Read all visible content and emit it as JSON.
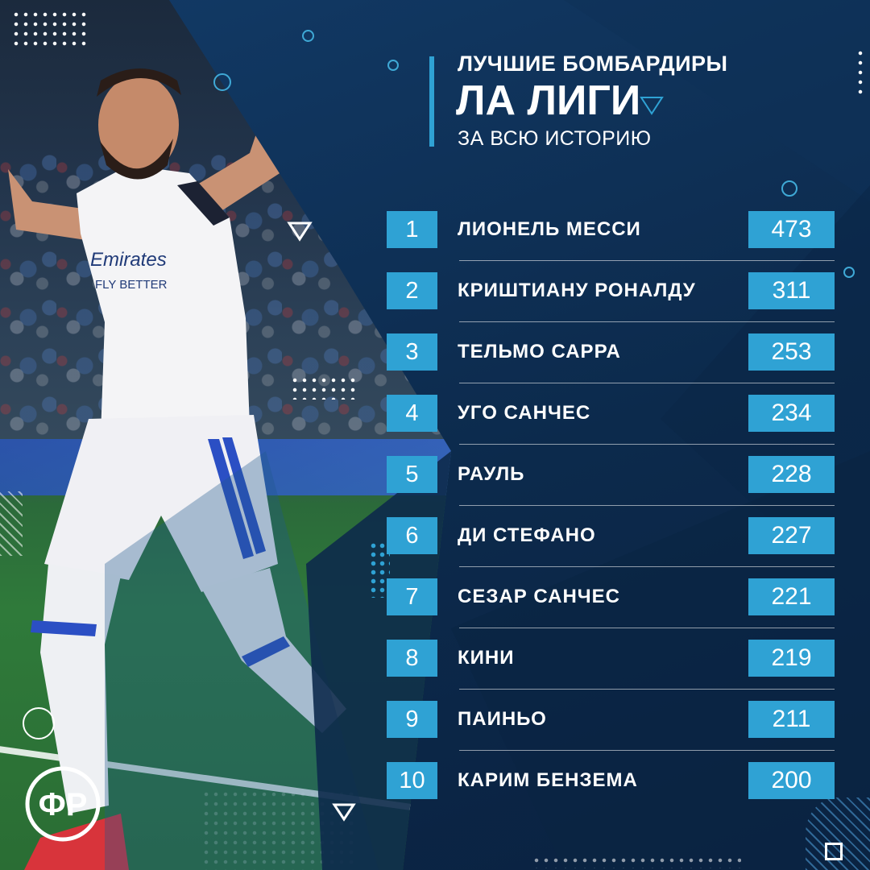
{
  "header": {
    "line1": "ЛУЧШИЕ БОМБАРДИРЫ",
    "line2": "ЛА ЛИГИ",
    "line3": "ЗА ВСЮ ИСТОРИЮ"
  },
  "scorers": [
    {
      "rank": "1",
      "name": "ЛИОНЕЛЬ МЕССИ",
      "goals": "473"
    },
    {
      "rank": "2",
      "name": "КРИШТИАНУ РОНАЛДУ",
      "goals": "311"
    },
    {
      "rank": "3",
      "name": "ТЕЛЬМО САРРА",
      "goals": "253"
    },
    {
      "rank": "4",
      "name": "УГО САНЧЕС",
      "goals": "234"
    },
    {
      "rank": "5",
      "name": "РАУЛЬ",
      "goals": "228"
    },
    {
      "rank": "6",
      "name": "ДИ СТЕФАНО",
      "goals": "227"
    },
    {
      "rank": "7",
      "name": "СЕЗАР САНЧЕС",
      "goals": "221"
    },
    {
      "rank": "8",
      "name": "КИНИ",
      "goals": "219"
    },
    {
      "rank": "9",
      "name": "ПАИНЬО",
      "goals": "211"
    },
    {
      "rank": "10",
      "name": "КАРИМ БЕНЗЕМА",
      "goals": "200"
    }
  ],
  "photo": {
    "jersey_sponsor": "Emirates",
    "jersey_slogan": "FLY BETTER"
  },
  "logo": {
    "text": "ФР"
  },
  "colors": {
    "background": "#0d2a4b",
    "accent": "#2fa2d4",
    "text": "#ffffff"
  },
  "icons": [
    "triangle-down-icon",
    "circle-outline-icon",
    "dot-grid-pattern",
    "square-outline-icon",
    "brand-logo"
  ]
}
